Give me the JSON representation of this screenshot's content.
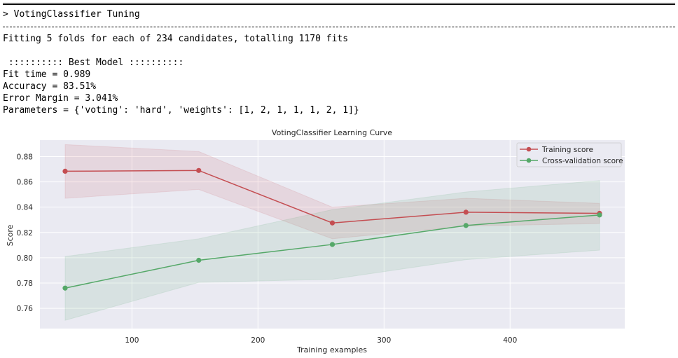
{
  "output": {
    "header": "> VotingClassifier Tuning",
    "fitting_line": "Fitting 5 folds for each of 234 candidates, totalling 1170 fits",
    "best_model_line": " :::::::::: Best Model ::::::::::",
    "fit_time_line": "Fit time = 0.989",
    "accuracy_line": "Accuracy = 83.51%",
    "error_margin_line": "Error Margin = 3.041%",
    "parameters_line": "Parameters = {'voting': 'hard', 'weights': [1, 2, 1, 1, 1, 2, 1]}"
  },
  "chart_data": {
    "type": "line",
    "title": "VotingClassifier Learning Curve",
    "xlabel": "Training examples",
    "ylabel": "Score",
    "xlim": [
      27,
      491
    ],
    "ylim": [
      0.744,
      0.893
    ],
    "xticks": [
      100,
      200,
      300,
      400
    ],
    "yticks": [
      0.76,
      0.78,
      0.8,
      0.82,
      0.84,
      0.86,
      0.88
    ],
    "ytick_labels": [
      "0.76",
      "0.78",
      "0.80",
      "0.82",
      "0.84",
      "0.86",
      "0.88"
    ],
    "grid": true,
    "legend_position": "top-right",
    "x": [
      47,
      153,
      259,
      365,
      471
    ],
    "series": [
      {
        "name": "Training score",
        "color": "#c44e52",
        "values": [
          0.8684,
          0.869,
          0.8275,
          0.836,
          0.8351
        ],
        "band_upper": [
          0.8895,
          0.884,
          0.84,
          0.847,
          0.843
        ],
        "band_lower": [
          0.847,
          0.854,
          0.815,
          0.825,
          0.827
        ]
      },
      {
        "name": "Cross-validation score",
        "color": "#55a868",
        "values": [
          0.776,
          0.798,
          0.8105,
          0.8255,
          0.8338
        ],
        "band_upper": [
          0.801,
          0.815,
          0.838,
          0.852,
          0.861
        ],
        "band_lower": [
          0.7505,
          0.7805,
          0.783,
          0.7985,
          0.806
        ]
      }
    ]
  }
}
